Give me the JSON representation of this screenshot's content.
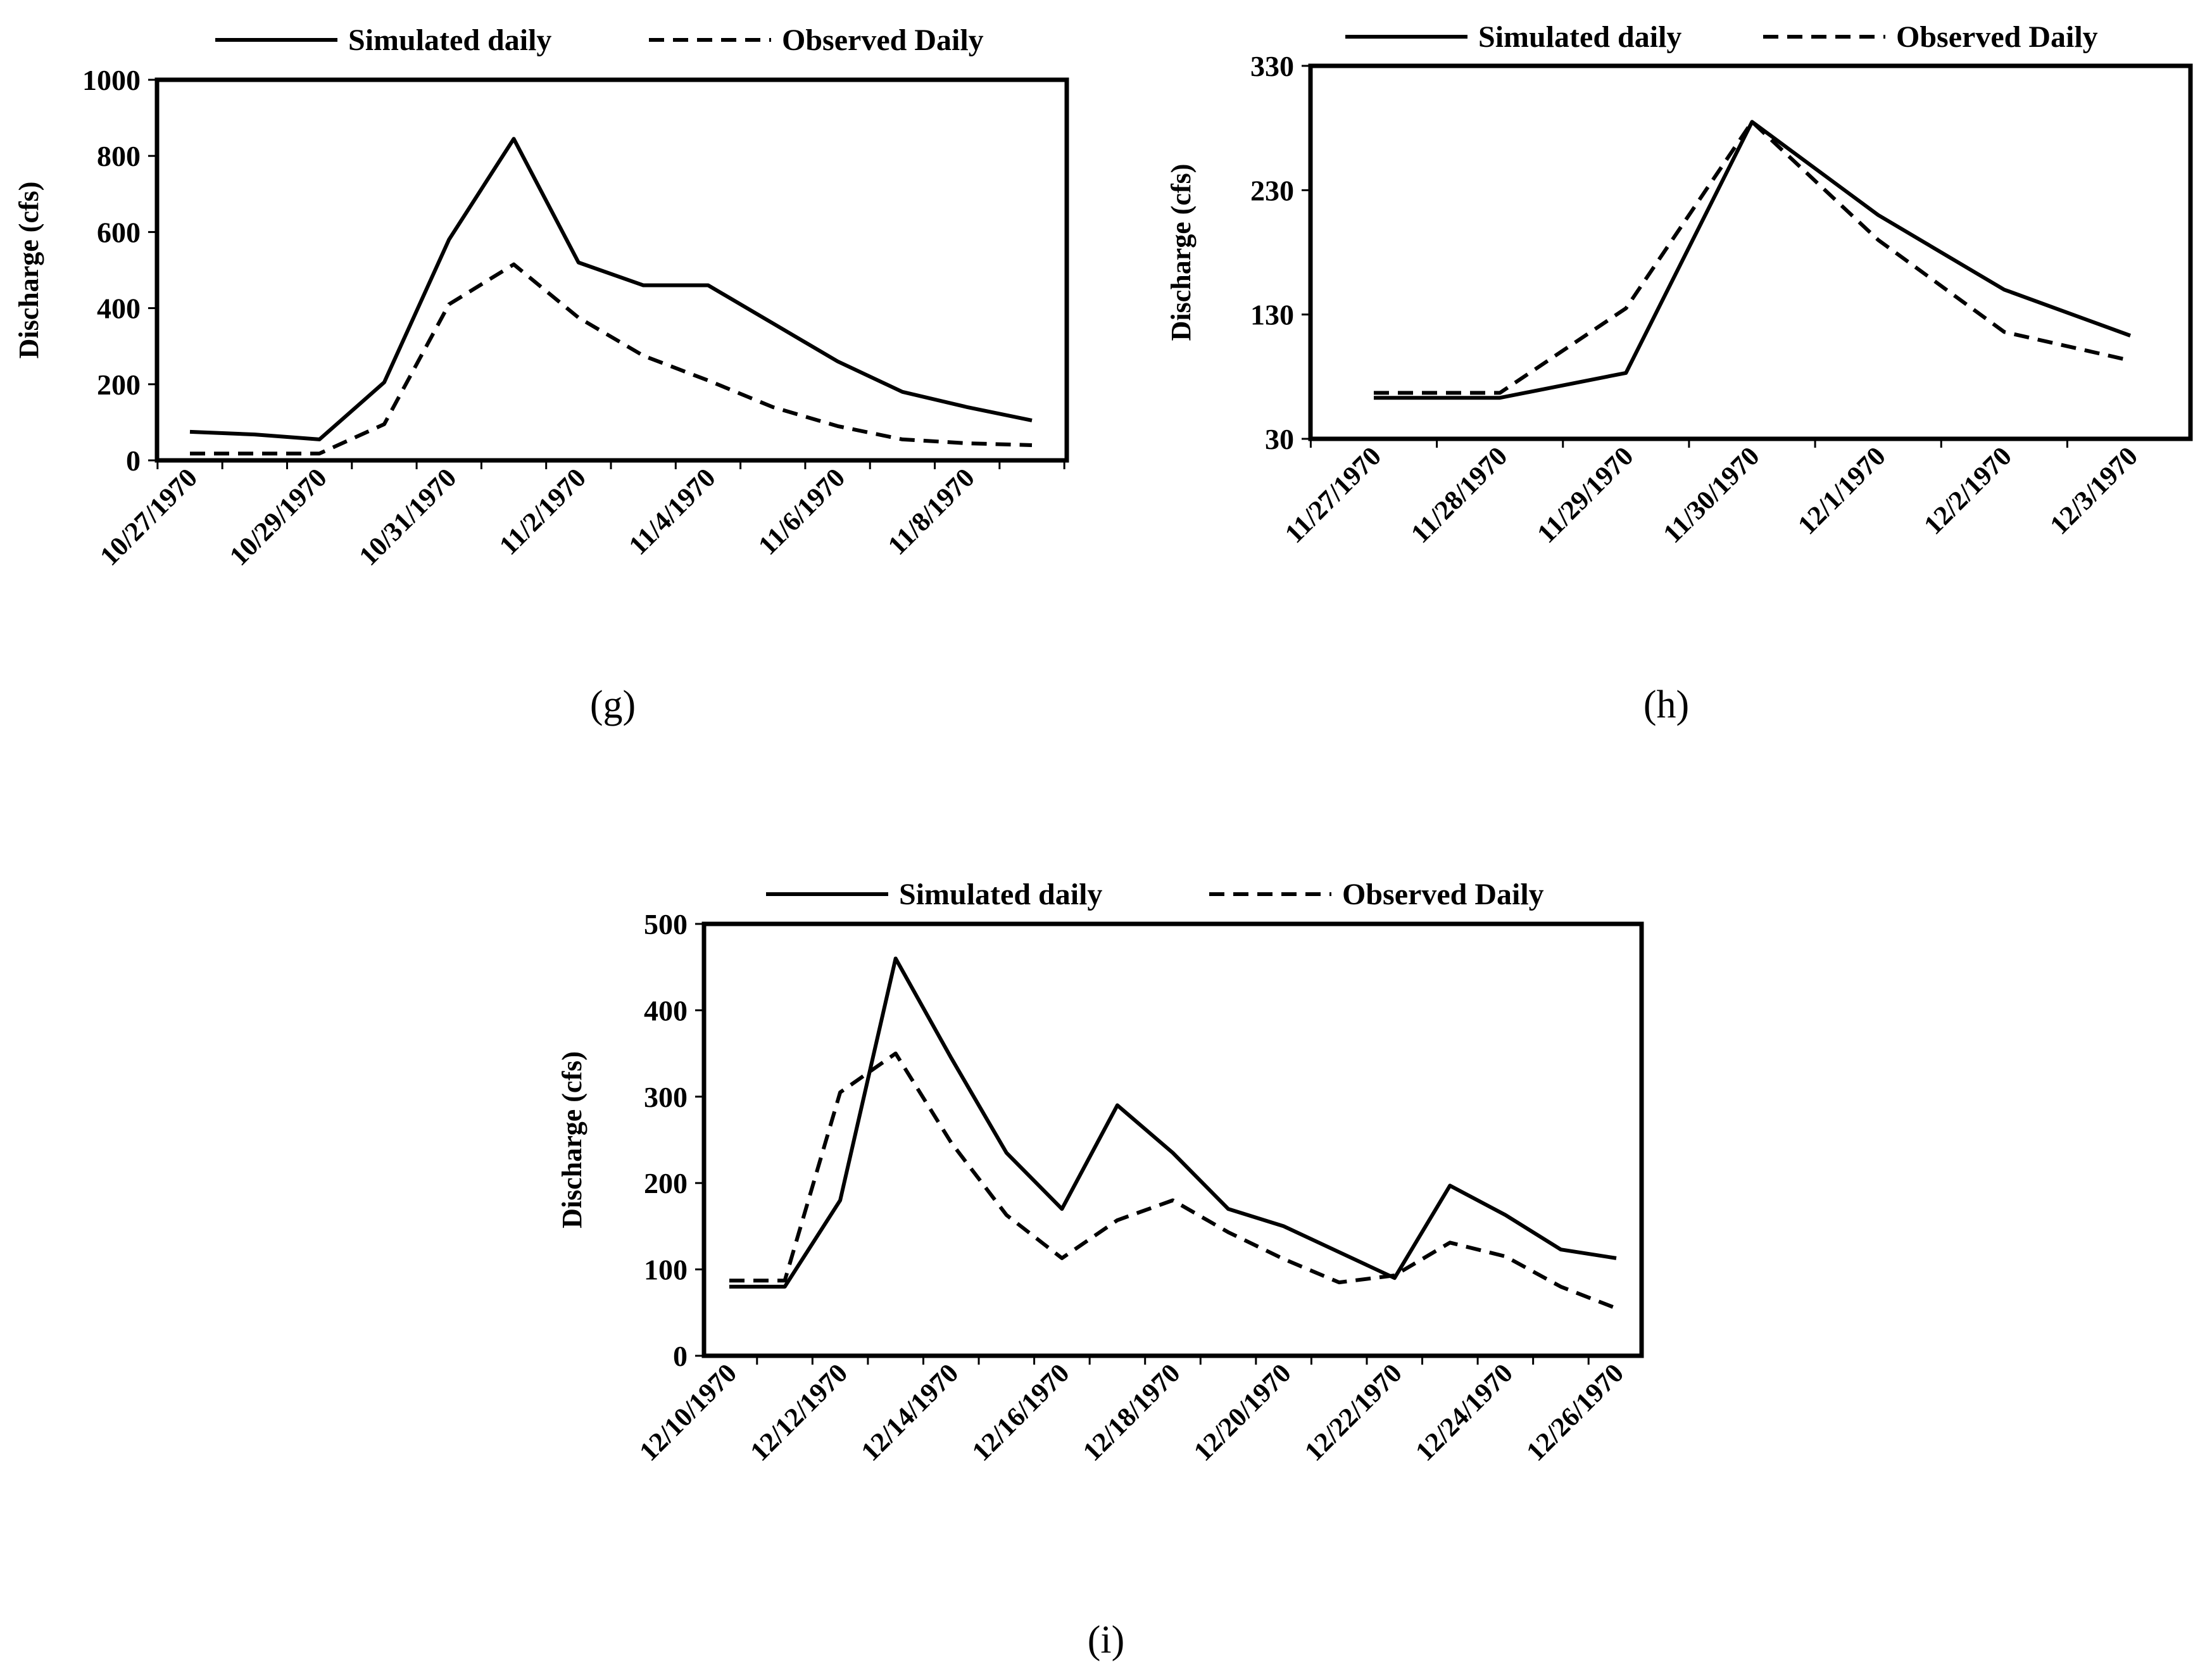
{
  "chart_data": [
    {
      "type": "line",
      "panel_label": "(g)",
      "ylabel": "Discharge (cfs)",
      "ylim": [
        0,
        1000
      ],
      "yticks": [
        "0",
        "200",
        "400",
        "600",
        "800",
        "1000"
      ],
      "x_labels": [
        "10/27/1970",
        "10/29/1970",
        "10/31/1970",
        "11/2/1970",
        "11/4/1970",
        "11/6/1970",
        "11/8/1970"
      ],
      "x_dates": [
        "10/27/1970",
        "10/28/1970",
        "10/29/1970",
        "10/30/1970",
        "10/31/1970",
        "11/1/1970",
        "11/2/1970",
        "11/3/1970",
        "11/4/1970",
        "11/5/1970",
        "11/6/1970",
        "11/7/1970",
        "11/8/1970",
        "11/9/1970"
      ],
      "series": [
        {
          "name": "Simulated daily",
          "style": "solid",
          "values": [
            75,
            68,
            55,
            205,
            580,
            845,
            520,
            460,
            460,
            360,
            260,
            180,
            140,
            105
          ]
        },
        {
          "name": "Observed Daily",
          "style": "dashed",
          "values": [
            18,
            18,
            18,
            95,
            410,
            515,
            375,
            275,
            210,
            140,
            90,
            55,
            45,
            40
          ]
        }
      ]
    },
    {
      "type": "line",
      "panel_label": "(h)",
      "ylabel": "Discharge (cfs)",
      "ylim": [
        30,
        330
      ],
      "yticks": [
        "30",
        "130",
        "230",
        "330"
      ],
      "x_labels": [
        "11/27/1970",
        "11/28/1970",
        "11/29/1970",
        "11/30/1970",
        "12/1/1970",
        "12/2/1970",
        "12/3/1970"
      ],
      "x_dates": [
        "11/27/1970",
        "11/28/1970",
        "11/29/1970",
        "11/30/1970",
        "12/1/1970",
        "12/2/1970",
        "12/3/1970"
      ],
      "series": [
        {
          "name": "Simulated daily",
          "style": "solid",
          "values": [
            63,
            63,
            83,
            285,
            210,
            150,
            113
          ]
        },
        {
          "name": "Observed Daily",
          "style": "dashed",
          "values": [
            67,
            67,
            135,
            285,
            190,
            116,
            93
          ]
        }
      ]
    },
    {
      "type": "line",
      "panel_label": "(i)",
      "ylabel": "Discharge (cfs)",
      "ylim": [
        0,
        500
      ],
      "yticks": [
        "0",
        "100",
        "200",
        "300",
        "400",
        "500"
      ],
      "x_labels": [
        "12/10/1970",
        "12/12/1970",
        "12/14/1970",
        "12/16/1970",
        "12/18/1970",
        "12/20/1970",
        "12/22/1970",
        "12/24/1970",
        "12/26/1970"
      ],
      "x_dates": [
        "12/10/1970",
        "12/11/1970",
        "12/12/1970",
        "12/13/1970",
        "12/14/1970",
        "12/15/1970",
        "12/16/1970",
        "12/17/1970",
        "12/18/1970",
        "12/19/1970",
        "12/20/1970",
        "12/21/1970",
        "12/22/1970",
        "12/23/1970",
        "12/24/1970",
        "12/25/1970",
        "12/26/1970"
      ],
      "series": [
        {
          "name": "Simulated daily",
          "style": "solid",
          "values": [
            80,
            80,
            180,
            460,
            345,
            235,
            170,
            290,
            235,
            170,
            150,
            120,
            90,
            197,
            163,
            123,
            113
          ]
        },
        {
          "name": "Observed Daily",
          "style": "dashed",
          "values": [
            87,
            87,
            305,
            350,
            247,
            163,
            113,
            157,
            180,
            143,
            112,
            85,
            93,
            131,
            115,
            80,
            55
          ]
        }
      ]
    }
  ]
}
